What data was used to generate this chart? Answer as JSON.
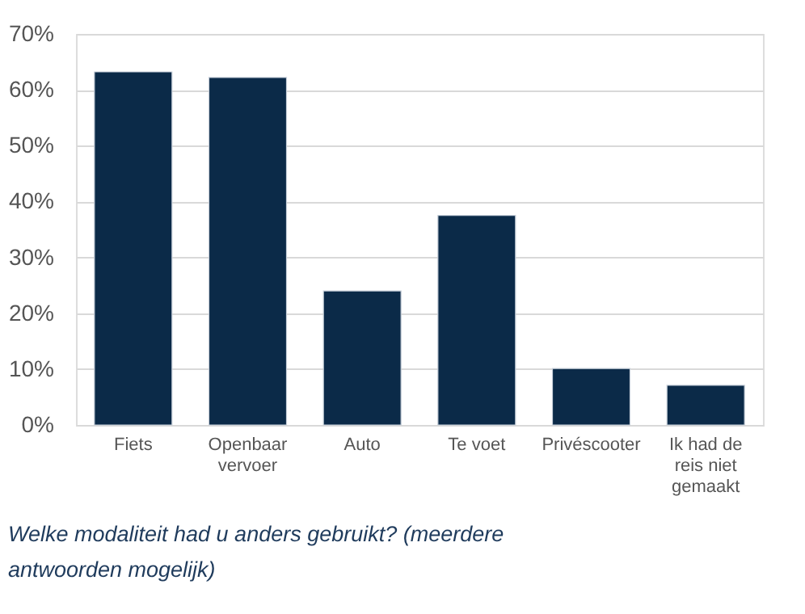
{
  "chart_data": {
    "type": "bar",
    "title": "Welke modaliteit had u anders gebruikt? (meerdere antwoorden mogelijk)",
    "categories": [
      "Fiets",
      "Openbaar vervoer",
      "Auto",
      "Te voet",
      "Privéscooter",
      "Ik had de reis niet gemaakt"
    ],
    "values": [
      63.2,
      62.2,
      24.0,
      37.5,
      10.1,
      7.1
    ],
    "color": "#0b2a48",
    "ylim": [
      0,
      70
    ],
    "yticks": [
      {
        "value": 0,
        "label": "0%"
      },
      {
        "value": 10,
        "label": "10%"
      },
      {
        "value": 20,
        "label": "20%"
      },
      {
        "value": 30,
        "label": "30%"
      },
      {
        "value": 40,
        "label": "40%"
      },
      {
        "value": 50,
        "label": "50%"
      },
      {
        "value": 60,
        "label": "60%"
      },
      {
        "value": 70,
        "label": "70%"
      }
    ],
    "grid": "y"
  }
}
